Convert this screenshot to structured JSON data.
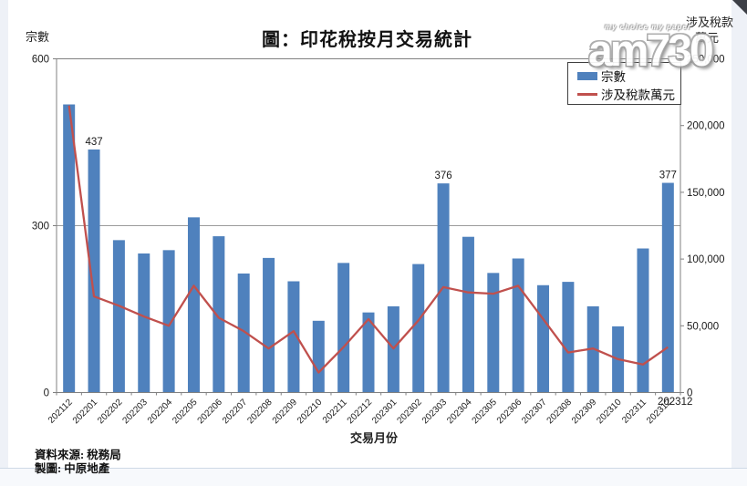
{
  "watermark": {
    "text": "am730",
    "tagline": "my choice my paper"
  },
  "footer": {
    "source": "資料來源: 稅務局",
    "credit": "製圖: 中原地產"
  },
  "colors": {
    "bar": "#4f81bd",
    "line": "#c0504d",
    "grid": "#9b9b9b",
    "border": "#808080"
  },
  "chart_data": {
    "type": "bar+line",
    "title": "圖：印花稅按月交易統計",
    "xlabel": "交易月份",
    "ylabel": "宗數",
    "y2label_line1": "涉及稅款",
    "y2label_line2": "萬元",
    "ylim": [
      0,
      600
    ],
    "y2lim": [
      0,
      250000
    ],
    "grid": "single horizontal gridline at y=300",
    "legend_position": "top-right inside plot",
    "categories": [
      "202112",
      "202201",
      "202202",
      "202203",
      "202204",
      "202205",
      "202206",
      "202207",
      "202208",
      "202209",
      "202210",
      "202211",
      "202212",
      "202301",
      "202302",
      "202303",
      "202304",
      "202305",
      "202306",
      "202307",
      "202308",
      "202309",
      "202310",
      "202311",
      "202312"
    ],
    "series": [
      {
        "name": "宗數",
        "type": "bar",
        "axis": "left",
        "values": [
          518,
          437,
          274,
          250,
          256,
          315,
          281,
          214,
          242,
          200,
          129,
          233,
          144,
          155,
          231,
          376,
          280,
          215,
          241,
          193,
          199,
          155,
          119,
          259,
          377
        ]
      },
      {
        "name": "涉及稅款萬元",
        "type": "line",
        "axis": "right",
        "values": [
          215000,
          72000,
          65000,
          57000,
          50000,
          80000,
          56000,
          46000,
          33000,
          46000,
          15000,
          34000,
          55000,
          33000,
          54000,
          79000,
          75000,
          74000,
          80000,
          55000,
          30000,
          33000,
          25000,
          21000,
          34000
        ]
      }
    ],
    "bar_labels": [
      {
        "category": "202201",
        "text": "437"
      },
      {
        "category": "202303",
        "text": "376"
      },
      {
        "category": "202312",
        "text": "377"
      }
    ],
    "left_ticks": [
      "0",
      "300",
      "600"
    ],
    "right_ticks": [
      "0",
      "50,000",
      "100,000",
      "150,000",
      "200,000",
      "250,000"
    ],
    "annotation": "202312"
  }
}
